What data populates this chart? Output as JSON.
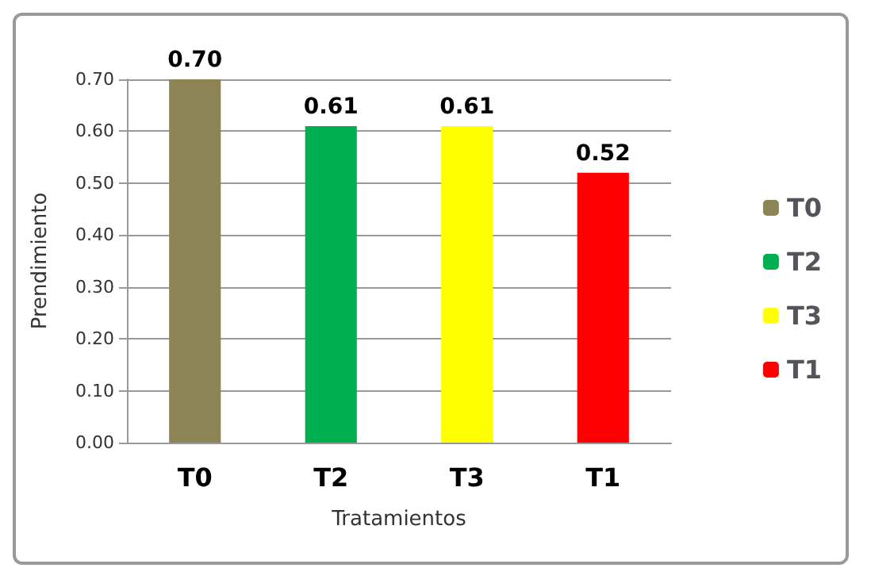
{
  "chart_data": {
    "type": "bar",
    "xlabel": "Tratamientos",
    "ylabel": "Prendimiento",
    "categories": [
      "T0",
      "T2",
      "T3",
      "T1"
    ],
    "series": [
      {
        "name": "T0",
        "color": "#8c8454",
        "values": [
          0.7,
          null,
          null,
          null
        ],
        "value_labels": [
          "0.70",
          null,
          null,
          null
        ]
      },
      {
        "name": "T2",
        "color": "#00b050",
        "values": [
          null,
          0.61,
          null,
          null
        ],
        "value_labels": [
          null,
          "0.61",
          null,
          null
        ]
      },
      {
        "name": "T3",
        "color": "#ffff00",
        "values": [
          null,
          null,
          0.61,
          null
        ],
        "value_labels": [
          null,
          null,
          "0.61",
          null
        ]
      },
      {
        "name": "T1",
        "color": "#ff0000",
        "values": [
          null,
          null,
          null,
          0.52
        ],
        "value_labels": [
          null,
          null,
          null,
          "0.52"
        ]
      }
    ],
    "ylim": [
      0,
      0.7
    ],
    "yticks": [
      {
        "value": 0,
        "label": "0.00"
      },
      {
        "value": 0.1,
        "label": "0.10"
      },
      {
        "value": 0.2,
        "label": "0.20"
      },
      {
        "value": 0.3,
        "label": "0.30"
      },
      {
        "value": 0.4,
        "label": "0.40"
      },
      {
        "value": 0.5,
        "label": "0.50"
      },
      {
        "value": 0.6,
        "label": "0.60"
      },
      {
        "value": 0.7,
        "label": "0.70"
      }
    ],
    "grid": "y",
    "legend": "right"
  }
}
